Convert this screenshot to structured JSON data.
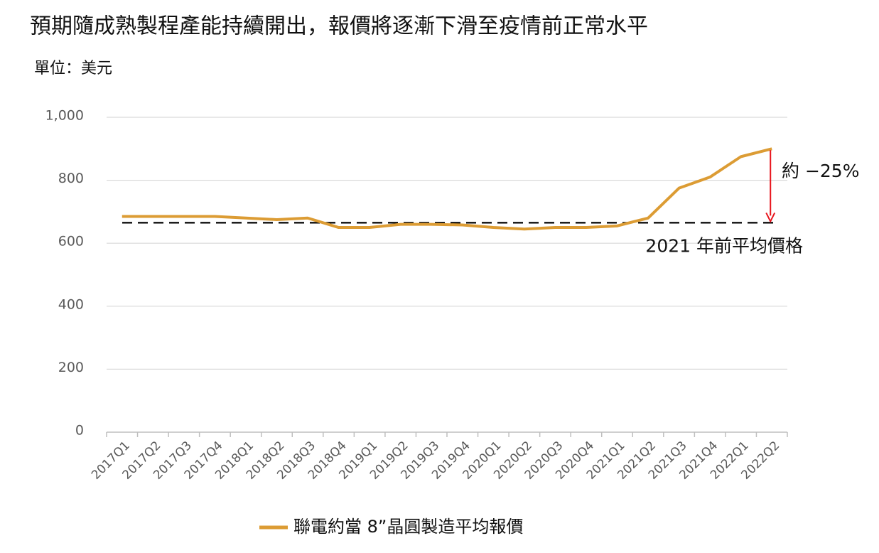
{
  "chart_data": {
    "type": "line",
    "title": "預期隨成熟製程產能持續開出，報價將逐漸下滑至疫情前正常水平",
    "subtitle": "單位：美元",
    "categories": [
      "2017Q1",
      "2017Q2",
      "2017Q3",
      "2017Q4",
      "2018Q1",
      "2018Q2",
      "2018Q3",
      "2018Q4",
      "2019Q1",
      "2019Q2",
      "2019Q3",
      "2019Q4",
      "2020Q1",
      "2020Q2",
      "2020Q3",
      "2020Q4",
      "2021Q1",
      "2021Q2",
      "2021Q3",
      "2021Q4",
      "2022Q1",
      "2022Q2"
    ],
    "series": [
      {
        "name": "聯電約當 8”晶圓製造平均報價",
        "color": "#dc9c34",
        "values": [
          685,
          685,
          685,
          685,
          680,
          675,
          680,
          650,
          650,
          660,
          660,
          658,
          650,
          645,
          650,
          650,
          655,
          680,
          775,
          810,
          875,
          900
        ]
      }
    ],
    "ylim": [
      0,
      1000
    ],
    "yticks": [
      0,
      200,
      400,
      600,
      800,
      {
        "value": 1000,
        "label": "1,000"
      }
    ],
    "grid": true,
    "reference": {
      "value": 665,
      "label": "2021 年前平均價格"
    },
    "annotation": "約 −25%"
  }
}
